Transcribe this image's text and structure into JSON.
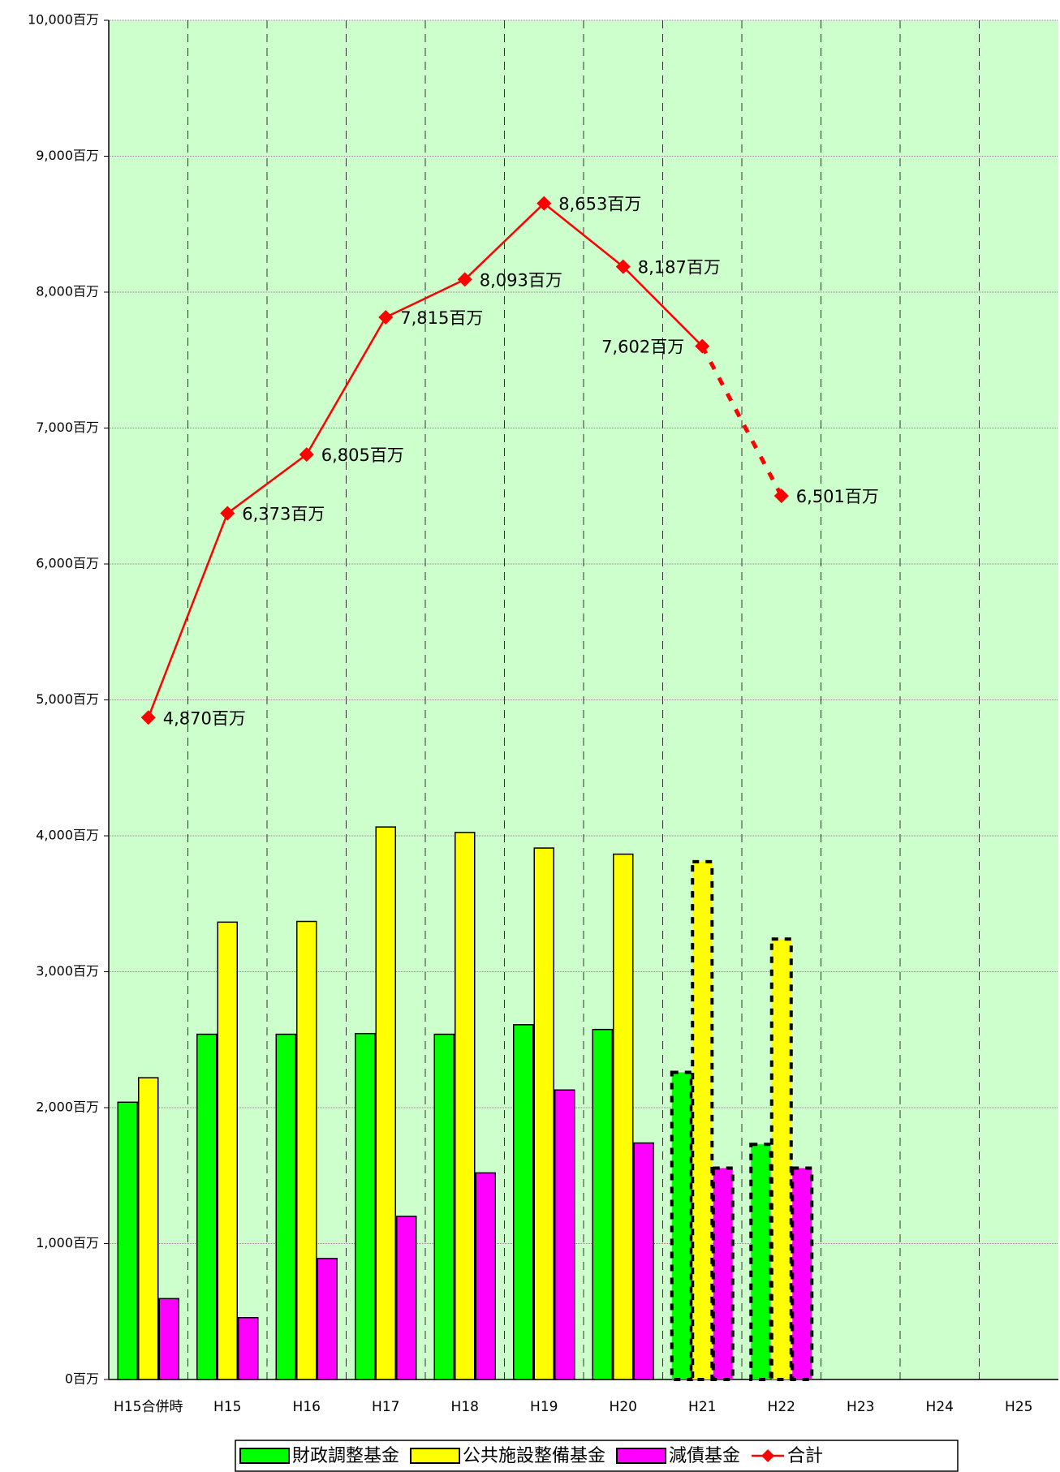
{
  "chart_data": {
    "type": "bar",
    "categories": [
      "H15合併時",
      "H15",
      "H16",
      "H17",
      "H18",
      "H19",
      "H20",
      "H21",
      "H22",
      "H23",
      "H24",
      "H25"
    ],
    "projected": [
      false,
      false,
      false,
      false,
      false,
      false,
      false,
      true,
      true,
      false,
      false,
      false
    ],
    "series": [
      {
        "name": "財政調整基金",
        "color": "#00ff00",
        "values": [
          2040,
          2540,
          2540,
          2545,
          2540,
          2610,
          2575,
          2260,
          1730,
          null,
          null,
          null
        ]
      },
      {
        "name": "公共施設整備基金",
        "color": "#ffff00",
        "values": [
          2220,
          3365,
          3370,
          4065,
          4025,
          3910,
          3865,
          3810,
          3240,
          null,
          null,
          null
        ]
      },
      {
        "name": "減債基金",
        "color": "#ff00ff",
        "values": [
          595,
          455,
          890,
          1200,
          1520,
          2130,
          1740,
          1555,
          1555,
          null,
          null,
          null
        ]
      },
      {
        "name": "合計",
        "type": "line",
        "color": "#ff0000",
        "values": [
          4870,
          6373,
          6805,
          7815,
          8093,
          8653,
          8187,
          7602,
          6501,
          null,
          null,
          null
        ],
        "value_labels": [
          "4,870百万",
          "6,373百万",
          "6,805百万",
          "7,815百万",
          "8,093百万",
          "8,653百万",
          "8,187百万",
          "7,602百万",
          "6,501百万",
          null,
          null,
          null
        ]
      }
    ],
    "ylim": [
      0,
      10000
    ],
    "yticks": [
      {
        "value": 0,
        "label": "0百万"
      },
      {
        "value": 1000,
        "label": "1,000百万"
      },
      {
        "value": 2000,
        "label": "2,000百万"
      },
      {
        "value": 3000,
        "label": "3,000百万"
      },
      {
        "value": 4000,
        "label": "4,000百万"
      },
      {
        "value": 5000,
        "label": "5,000百万"
      },
      {
        "value": 6000,
        "label": "6,000百万"
      },
      {
        "value": 7000,
        "label": "7,000百万"
      },
      {
        "value": 8000,
        "label": "8,000百万"
      },
      {
        "value": 9000,
        "label": "9,000百万"
      },
      {
        "value": 10000,
        "label": "10,000百万"
      }
    ],
    "grid": true,
    "background": "#ccffcc",
    "legend": "bottom"
  }
}
